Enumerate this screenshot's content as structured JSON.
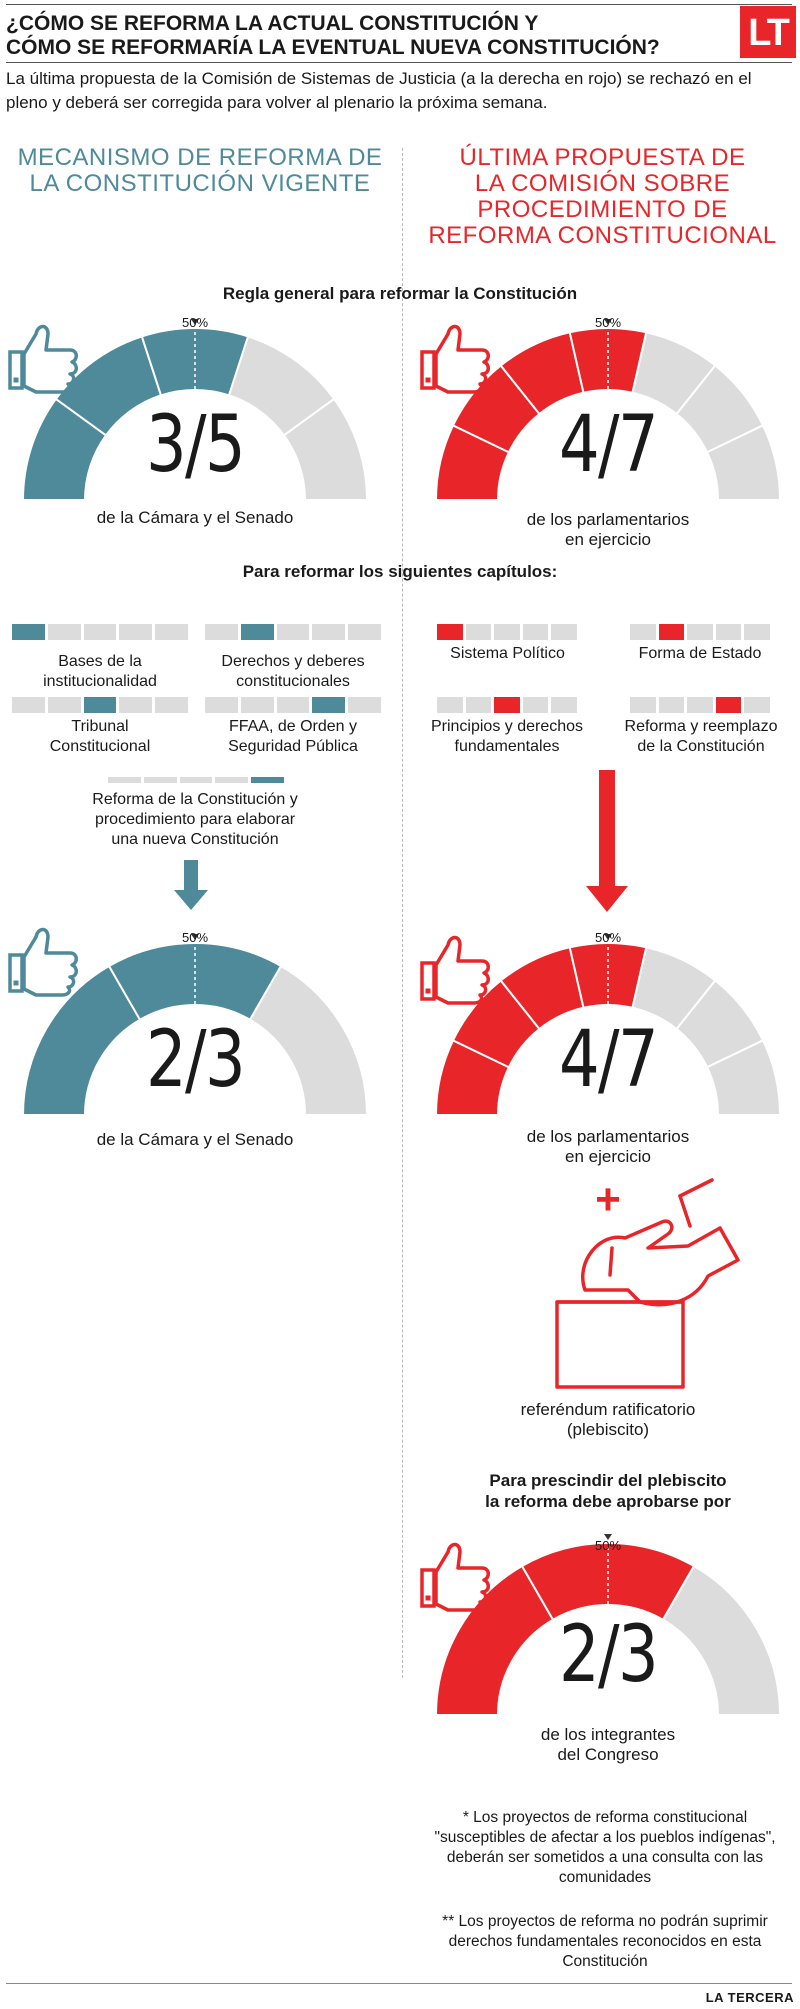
{
  "header": {
    "title_line1": "¿CÓMO SE REFORMA LA ACTUAL CONSTITUCIÓN Y",
    "title_line2": "CÓMO SE REFORMARÍA LA EVENTUAL NUEVA CONSTITUCIÓN?",
    "logo": "LT",
    "intro": "La última propuesta de la Comisión de Sistemas de Justicia (a la derecha en rojo) se rechazó en el pleno y deberá ser corregida para volver al plenario la próxima semana."
  },
  "left": {
    "heading_line1": "MECANISMO DE REFORMA DE",
    "heading_line2": "LA CONSTITUCIÓN VIGENTE"
  },
  "right": {
    "heading_line1": "ÚLTIMA PROPUESTA DE",
    "heading_line2": "LA COMISIÓN SOBRE",
    "heading_line3": "PROCEDIMIENTO DE",
    "heading_line4": "REFORMA CONSTITUCIONAL"
  },
  "colors": {
    "teal": "#4e8a9a",
    "red": "#e8262a",
    "grey": "#dcdcdc"
  },
  "general_rule": "Regla general para reformar la Constitución",
  "chapters_heading": "Para reformar los siguientes capítulos:",
  "gauges": {
    "left_top": {
      "pct": "50%",
      "fraction": "3/5",
      "filled": 3,
      "total": 5,
      "label_line1": "de la Cámara y el Senado",
      "label_line2": ""
    },
    "right_top": {
      "pct": "50%",
      "fraction": "4/7",
      "filled": 4,
      "total": 7,
      "label_line1": "de los parlamentarios",
      "label_line2": "en ejercicio"
    },
    "left_bottom": {
      "pct": "50%",
      "fraction": "2/3",
      "filled": 2,
      "total": 3,
      "label_line1": "de la Cámara y el Senado",
      "label_line2": ""
    },
    "right_bottom": {
      "pct": "50%",
      "fraction": "4/7",
      "filled": 4,
      "total": 7,
      "label_line1": "de los parlamentarios",
      "label_line2": "en ejercicio"
    },
    "plebiscite": {
      "pct": "50%",
      "fraction": "2/3",
      "filled": 2,
      "total": 3,
      "label_line1": "de los integrantes",
      "label_line2": "del Congreso"
    }
  },
  "chapters_left": [
    {
      "line1": "Bases de la",
      "line2": "institucionalidad",
      "active": 1
    },
    {
      "line1": "Derechos y deberes",
      "line2": "constitucionales",
      "active": 2
    },
    {
      "line1": "Tribunal",
      "line2": "Constitucional",
      "active": 3
    },
    {
      "line1": "FFAA, de Orden y",
      "line2": "Seguridad Pública",
      "active": 4
    },
    {
      "line1": "Reforma de la Constitución y",
      "line2": "procedimiento para elaborar",
      "line3": "una nueva Constitución",
      "active": 5
    }
  ],
  "chapters_right": [
    {
      "line1": "Sistema Político",
      "line2": "",
      "active": 1
    },
    {
      "line1": "Forma de Estado",
      "line2": "",
      "active": 2
    },
    {
      "line1": "Principios y derechos",
      "line2": "fundamentales",
      "active": 3
    },
    {
      "line1": "Reforma y reemplazo",
      "line2": "de la Constitución",
      "active": 4
    }
  ],
  "plus_sign": "+",
  "referendum_line1": "referéndum ratificatorio",
  "referendum_line2": "(plebiscito)",
  "skip_heading_line1": "Para prescindir del plebiscito",
  "skip_heading_line2": "la reforma debe aprobarse por",
  "footnote1": "* Los proyectos de reforma constitucional \"susceptibles de afectar a los pueblos indígenas\", deberán ser sometidos a una consulta con las comunidades",
  "footnote2": "** Los proyectos de reforma no podrán suprimir derechos fundamentales reconocidos en esta Constitución",
  "footer": "LA TERCERA",
  "icons": {
    "thumb": "thumbs-up-icon",
    "arrow": "arrow-down-icon",
    "ballot": "ballot-box-icon"
  }
}
